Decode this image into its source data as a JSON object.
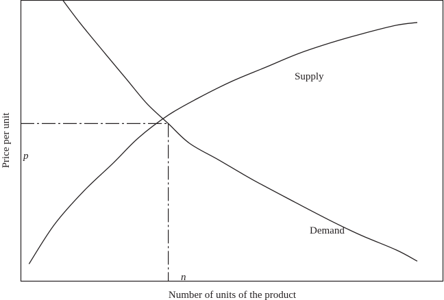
{
  "chart_data": {
    "type": "line",
    "title": "",
    "xlabel": "Number of units of the product",
    "ylabel": "Price per unit",
    "grid": false,
    "legend": "none",
    "series": [
      {
        "name": "Supply",
        "points": [
          [
            0.02,
            0.06
          ],
          [
            0.08,
            0.2
          ],
          [
            0.15,
            0.32
          ],
          [
            0.22,
            0.42
          ],
          [
            0.28,
            0.51
          ],
          [
            0.35,
            0.59
          ],
          [
            0.42,
            0.65
          ],
          [
            0.5,
            0.71
          ],
          [
            0.58,
            0.76
          ],
          [
            0.66,
            0.81
          ],
          [
            0.74,
            0.85
          ],
          [
            0.81,
            0.88
          ],
          [
            0.89,
            0.91
          ],
          [
            0.94,
            0.92
          ]
        ]
      },
      {
        "name": "Demand",
        "points": [
          [
            0.09,
            1.02
          ],
          [
            0.14,
            0.92
          ],
          [
            0.2,
            0.81
          ],
          [
            0.25,
            0.72
          ],
          [
            0.3,
            0.63
          ],
          [
            0.35,
            0.56
          ],
          [
            0.4,
            0.49
          ],
          [
            0.47,
            0.43
          ],
          [
            0.55,
            0.36
          ],
          [
            0.65,
            0.28
          ],
          [
            0.74,
            0.21
          ],
          [
            0.81,
            0.16
          ],
          [
            0.89,
            0.11
          ],
          [
            0.94,
            0.07
          ]
        ]
      }
    ],
    "equilibrium": {
      "x": 0.35,
      "y": 0.56,
      "x_label": "n",
      "y_label": "p"
    }
  }
}
